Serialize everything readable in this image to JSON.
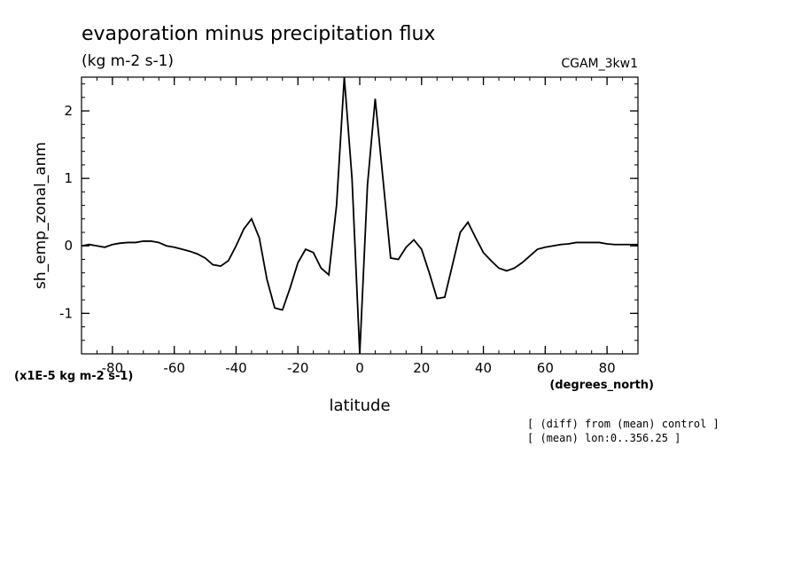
{
  "chart_data": {
    "type": "line",
    "title": "evaporation minus precipitation flux",
    "subtitle": "(kg m-2 s-1)",
    "label_right": "CGAM_3kw1",
    "xlabel": "latitude",
    "xunits": "(degrees_north)",
    "ylabel": "sh_emp_zonal_anm",
    "yscale_note": "(x1E-5 kg m-2 s-1)",
    "xlim": [
      -90,
      90
    ],
    "ylim": [
      -1.6,
      2.5
    ],
    "x_ticks": [
      -80,
      -60,
      -40,
      -20,
      0,
      20,
      40,
      60,
      80
    ],
    "x_tick_labels": [
      "-80",
      "-60",
      "-40",
      "-20",
      "0",
      "20",
      "40",
      "60",
      "80"
    ],
    "y_ticks": [
      -1,
      0,
      1,
      2
    ],
    "y_tick_labels": [
      "-1",
      "0",
      "1",
      "2"
    ],
    "notes": [
      "[ (diff) from (mean) control ]",
      "[ (mean) lon:0..356.25 ]"
    ],
    "line_color": "#000000",
    "grid": false,
    "series": [
      {
        "x": [
          -90,
          -87.5,
          -85,
          -82.5,
          -80,
          -77.5,
          -75,
          -72.5,
          -70,
          -67.5,
          -65,
          -62.5,
          -60,
          -57.5,
          -55,
          -52.5,
          -50,
          -47.5,
          -45,
          -42.5,
          -40,
          -37.5,
          -35,
          -32.5,
          -30,
          -27.5,
          -25,
          -22.5,
          -20,
          -17.5,
          -15,
          -12.5,
          -10,
          -7.5,
          -5,
          -2.5,
          0,
          2.5,
          5,
          7.5,
          10,
          12.5,
          15,
          17.5,
          20,
          22.5,
          25,
          27.5,
          30,
          32.5,
          35,
          37.5,
          40,
          42.5,
          45,
          47.5,
          50,
          52.5,
          55,
          57.5,
          60,
          62.5,
          65,
          67.5,
          70,
          72.5,
          75,
          77.5,
          80,
          82.5,
          85,
          87.5,
          90
        ],
        "y": [
          0.0,
          0.02,
          0.0,
          -0.02,
          0.02,
          0.04,
          0.05,
          0.05,
          0.07,
          0.07,
          0.05,
          0.0,
          -0.02,
          -0.05,
          -0.08,
          -0.12,
          -0.18,
          -0.28,
          -0.3,
          -0.22,
          0.0,
          0.25,
          0.4,
          0.12,
          -0.5,
          -0.92,
          -0.95,
          -0.62,
          -0.25,
          -0.05,
          -0.1,
          -0.33,
          -0.43,
          0.6,
          2.5,
          1.0,
          -1.6,
          0.9,
          2.18,
          1.0,
          -0.18,
          -0.2,
          -0.02,
          0.09,
          -0.05,
          -0.4,
          -0.78,
          -0.76,
          -0.28,
          0.2,
          0.35,
          0.12,
          -0.1,
          -0.22,
          -0.33,
          -0.37,
          -0.33,
          -0.25,
          -0.15,
          -0.05,
          -0.02,
          0.0,
          0.02,
          0.03,
          0.05,
          0.05,
          0.05,
          0.05,
          0.03,
          0.02,
          0.02,
          0.02,
          0.02
        ]
      }
    ]
  }
}
